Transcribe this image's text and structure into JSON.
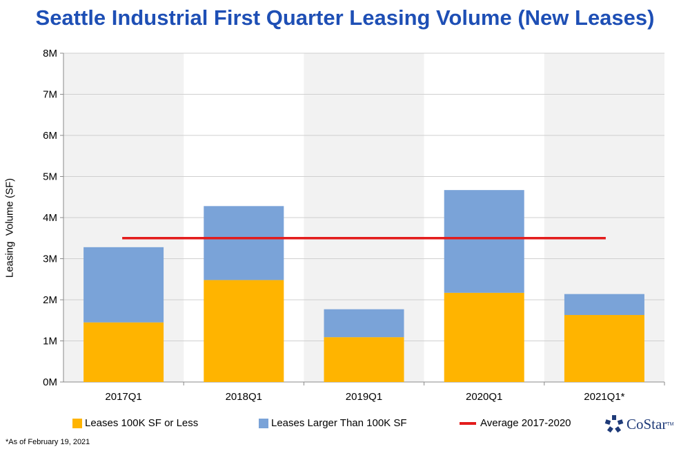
{
  "chart_data": {
    "type": "bar",
    "stacked": true,
    "title": "Seattle Industrial First Quarter Leasing Volume (New Leases)",
    "ylabel": "Leasing  Volume (SF)",
    "xlabel": "",
    "categories": [
      "2017Q1",
      "2018Q1",
      "2019Q1",
      "2020Q1",
      "2021Q1*"
    ],
    "series": [
      {
        "name": "Leases 100K SF or Less",
        "values": [
          1450000,
          2480000,
          1090000,
          2170000,
          1630000
        ],
        "color": "#ffb400"
      },
      {
        "name": "Leases Larger Than 100K SF",
        "values": [
          1830000,
          1800000,
          680000,
          2500000,
          510000
        ],
        "color": "#7aa3d8"
      }
    ],
    "average_line": {
      "name": "Average 2017-2020",
      "value": 3500000,
      "color": "#e31c1c"
    },
    "ylim": [
      0,
      8000000
    ],
    "yticks": [
      {
        "value": 0,
        "label": "0M"
      },
      {
        "value": 1000000,
        "label": "1M"
      },
      {
        "value": 2000000,
        "label": "2M"
      },
      {
        "value": 3000000,
        "label": "3M"
      },
      {
        "value": 4000000,
        "label": "4M"
      },
      {
        "value": 5000000,
        "label": "5M"
      },
      {
        "value": 6000000,
        "label": "6M"
      },
      {
        "value": 7000000,
        "label": "7M"
      },
      {
        "value": 8000000,
        "label": "8M"
      }
    ],
    "grid": true,
    "legend_position": "bottom"
  },
  "footnote": "*As of February 19, 2021",
  "logo": {
    "text": "CoStar",
    "tm": "TM"
  },
  "colors": {
    "title": "#1e4fb5",
    "band": "#f2f2f2",
    "grid": "#cfcfcf"
  }
}
